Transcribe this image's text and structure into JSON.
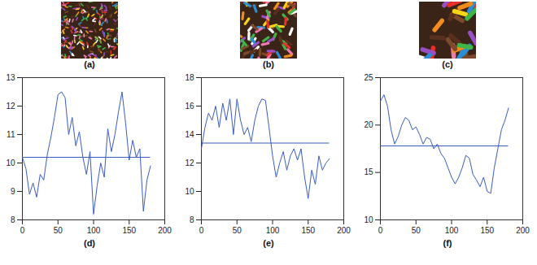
{
  "images": [
    {
      "label": "(a)"
    },
    {
      "label": "(b)"
    },
    {
      "label": "(c)"
    }
  ],
  "chart_data": [
    {
      "type": "line",
      "label": "(d)",
      "x": [
        0,
        5,
        10,
        15,
        20,
        25,
        30,
        35,
        40,
        45,
        50,
        55,
        60,
        65,
        70,
        75,
        80,
        85,
        90,
        95,
        100,
        105,
        110,
        115,
        120,
        125,
        130,
        135,
        140,
        145,
        150,
        155,
        160,
        165,
        170,
        175,
        180
      ],
      "series": [
        {
          "color": "#3a5cc4",
          "values": [
            10.2,
            9.8,
            8.9,
            9.3,
            8.8,
            9.6,
            9.4,
            10.3,
            10.9,
            11.6,
            12.4,
            12.5,
            12.3,
            11.0,
            11.6,
            10.6,
            11.1,
            10.2,
            9.6,
            10.4,
            8.2,
            9.2,
            10.0,
            9.5,
            11.2,
            10.4,
            11.0,
            11.8,
            12.5,
            11.4,
            10.1,
            10.8,
            10.2,
            10.5,
            8.3,
            9.4,
            9.9
          ]
        }
      ],
      "hline": 10.2,
      "xlim": [
        0,
        200
      ],
      "xticks": [
        0,
        50,
        100,
        150,
        200
      ],
      "ylim": [
        8,
        13
      ],
      "yticks": [
        8,
        9,
        10,
        11,
        12,
        13
      ]
    },
    {
      "type": "line",
      "label": "(e)",
      "x": [
        0,
        5,
        10,
        15,
        20,
        25,
        30,
        35,
        40,
        45,
        50,
        55,
        60,
        65,
        70,
        75,
        80,
        85,
        90,
        95,
        100,
        105,
        110,
        115,
        120,
        125,
        130,
        135,
        140,
        145,
        150,
        155,
        160,
        165,
        170,
        175,
        180
      ],
      "series": [
        {
          "color": "#3a5cc4",
          "values": [
            13.0,
            14.5,
            15.5,
            15.0,
            16.0,
            14.5,
            16.2,
            15.0,
            16.5,
            14.0,
            16.5,
            15.0,
            14.0,
            14.5,
            13.5,
            15.0,
            16.0,
            16.5,
            16.4,
            14.5,
            12.5,
            11.0,
            12.0,
            12.8,
            11.5,
            12.5,
            13.0,
            12.2,
            13.0,
            11.0,
            9.5,
            11.5,
            10.5,
            12.5,
            11.5,
            12.0,
            12.3
          ]
        }
      ],
      "hline": 13.4,
      "xlim": [
        0,
        200
      ],
      "xticks": [
        0,
        50,
        100,
        150,
        200
      ],
      "ylim": [
        8,
        18
      ],
      "yticks": [
        8,
        10,
        12,
        14,
        16,
        18
      ]
    },
    {
      "type": "line",
      "label": "(f)",
      "x": [
        0,
        5,
        10,
        15,
        20,
        25,
        30,
        35,
        40,
        45,
        50,
        55,
        60,
        65,
        70,
        75,
        80,
        85,
        90,
        95,
        100,
        105,
        110,
        115,
        120,
        125,
        130,
        135,
        140,
        145,
        150,
        155,
        160,
        165,
        170,
        175,
        180
      ],
      "series": [
        {
          "color": "#3a5cc4",
          "values": [
            22.5,
            23.2,
            22.0,
            19.5,
            18.0,
            18.8,
            20.0,
            20.8,
            20.5,
            19.5,
            19.8,
            19.0,
            18.0,
            18.7,
            18.5,
            17.5,
            18.0,
            17.0,
            16.5,
            15.5,
            14.5,
            13.8,
            14.5,
            15.5,
            16.8,
            16.5,
            14.8,
            14.2,
            13.5,
            14.5,
            13.0,
            12.8,
            15.5,
            17.5,
            19.5,
            20.5,
            21.8
          ]
        }
      ],
      "hline": 17.8,
      "xlim": [
        0,
        200
      ],
      "xticks": [
        0,
        50,
        100,
        150,
        200
      ],
      "ylim": [
        10,
        25
      ],
      "yticks": [
        10,
        15,
        20,
        25
      ]
    }
  ]
}
